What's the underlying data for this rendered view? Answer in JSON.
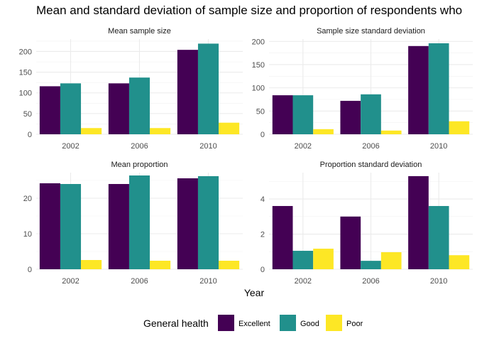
{
  "chart_data": {
    "type": "bar",
    "title": "Mean and standard deviation of sample size and proportion of respondents who",
    "xlabel": "Year",
    "categories": [
      "2002",
      "2006",
      "2010"
    ],
    "legend": {
      "title": "General health",
      "position": "bottom"
    },
    "colors": {
      "Excellent": "#440154",
      "Good": "#21908C",
      "Poor": "#FDE725"
    },
    "panels": [
      {
        "title": "Mean sample size",
        "ylim": [
          0,
          230
        ],
        "yticks": [
          0,
          50,
          100,
          150,
          200
        ],
        "series": [
          {
            "name": "Excellent",
            "values": [
              116,
              123,
              204
            ]
          },
          {
            "name": "Good",
            "values": [
              123,
              137,
              219
            ]
          },
          {
            "name": "Poor",
            "values": [
              15,
              15,
              28
            ]
          }
        ]
      },
      {
        "title": "Sample size standard deviation",
        "ylim": [
          0,
          205
        ],
        "yticks": [
          0,
          50,
          100,
          150,
          200
        ],
        "series": [
          {
            "name": "Excellent",
            "values": [
              84,
              72,
              190
            ]
          },
          {
            "name": "Good",
            "values": [
              84,
              86,
              196
            ]
          },
          {
            "name": "Poor",
            "values": [
              11,
              8,
              28
            ]
          }
        ]
      },
      {
        "title": "Mean proportion",
        "ylim": [
          0,
          27.2
        ],
        "yticks": [
          0,
          10,
          20
        ],
        "series": [
          {
            "name": "Excellent",
            "values": [
              24.2,
              24.0,
              25.6
            ]
          },
          {
            "name": "Good",
            "values": [
              24.0,
              26.4,
              26.2
            ]
          },
          {
            "name": "Poor",
            "values": [
              2.6,
              2.4,
              2.4
            ]
          }
        ]
      },
      {
        "title": "Proportion standard deviation",
        "ylim": [
          0,
          5.5
        ],
        "yticks": [
          0,
          2,
          4
        ],
        "series": [
          {
            "name": "Excellent",
            "values": [
              3.6,
              3.0,
              5.3
            ]
          },
          {
            "name": "Good",
            "values": [
              1.05,
              0.48,
              3.6
            ]
          },
          {
            "name": "Poor",
            "values": [
              1.17,
              0.97,
              0.8
            ]
          }
        ]
      }
    ]
  }
}
